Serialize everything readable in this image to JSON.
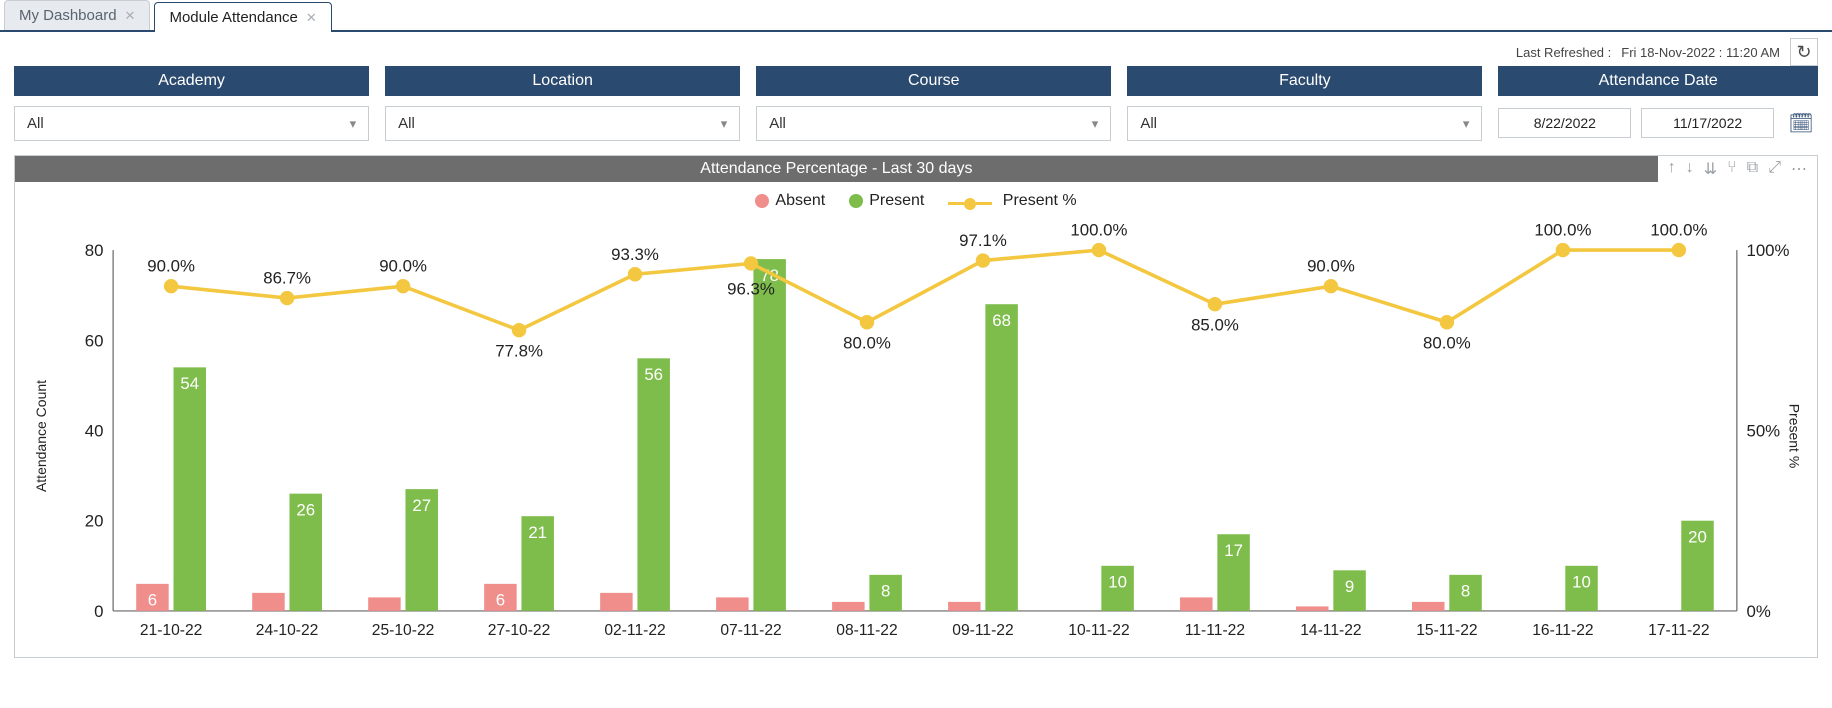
{
  "tabs": [
    {
      "label": "My Dashboard",
      "active": false
    },
    {
      "label": "Module Attendance",
      "active": true
    }
  ],
  "last_refreshed_prefix": "Last Refreshed :",
  "last_refreshed_value": "Fri 18-Nov-2022 : 11:20 AM",
  "filters": {
    "academy": {
      "header": "Academy",
      "value": "All"
    },
    "location": {
      "header": "Location",
      "value": "All"
    },
    "course": {
      "header": "Course",
      "value": "All"
    },
    "faculty": {
      "header": "Faculty",
      "value": "All"
    },
    "attendance_date": {
      "header": "Attendance Date",
      "from": "8/22/2022",
      "to": "11/17/2022"
    }
  },
  "chart": {
    "title": "Attendance Percentage - Last 30 days",
    "legend": {
      "absent": "Absent",
      "present": "Present",
      "present_pct": "Present %"
    },
    "y_left_label": "Attendance Count",
    "y_right_label": "Present %",
    "y_left_ticks": [
      0,
      20,
      40,
      60,
      80
    ],
    "y_left_max": 80,
    "y_right_ticks": [
      "0%",
      "50%",
      "100%"
    ],
    "colors": {
      "absent": "#ef8e8b",
      "present": "#7ebc4b",
      "line": "#f3c73f",
      "title_bar": "#6d6d6d",
      "header": "#2b4a6f"
    },
    "data": [
      {
        "date": "21-10-22",
        "absent": 6,
        "present": 54,
        "pct": 90.0,
        "pct_label": "90.0%"
      },
      {
        "date": "24-10-22",
        "absent": 4,
        "present": 26,
        "pct": 86.7,
        "pct_label": "86.7%"
      },
      {
        "date": "25-10-22",
        "absent": 3,
        "present": 27,
        "pct": 90.0,
        "pct_label": "90.0%"
      },
      {
        "date": "27-10-22",
        "absent": 6,
        "present": 21,
        "pct": 77.8,
        "pct_label": "77.8%"
      },
      {
        "date": "02-11-22",
        "absent": 4,
        "present": 56,
        "pct": 93.3,
        "pct_label": "93.3%"
      },
      {
        "date": "07-11-22",
        "absent": 3,
        "present": 78,
        "pct": 96.3,
        "pct_label": "96.3%"
      },
      {
        "date": "08-11-22",
        "absent": 2,
        "present": 8,
        "pct": 80.0,
        "pct_label": "80.0%"
      },
      {
        "date": "09-11-22",
        "absent": 2,
        "present": 68,
        "pct": 97.1,
        "pct_label": "97.1%"
      },
      {
        "date": "10-11-22",
        "absent": 0,
        "present": 10,
        "pct": 100.0,
        "pct_label": "100.0%"
      },
      {
        "date": "11-11-22",
        "absent": 3,
        "present": 17,
        "pct": 85.0,
        "pct_label": "85.0%"
      },
      {
        "date": "14-11-22",
        "absent": 1,
        "present": 9,
        "pct": 90.0,
        "pct_label": "90.0%"
      },
      {
        "date": "15-11-22",
        "absent": 2,
        "present": 8,
        "pct": 80.0,
        "pct_label": "80.0%"
      },
      {
        "date": "16-11-22",
        "absent": 0,
        "present": 10,
        "pct": 100.0,
        "pct_label": "100.0%"
      },
      {
        "date": "17-11-22",
        "absent": 0,
        "present": 20,
        "pct": 100.0,
        "pct_label": "100.0%"
      }
    ]
  }
}
